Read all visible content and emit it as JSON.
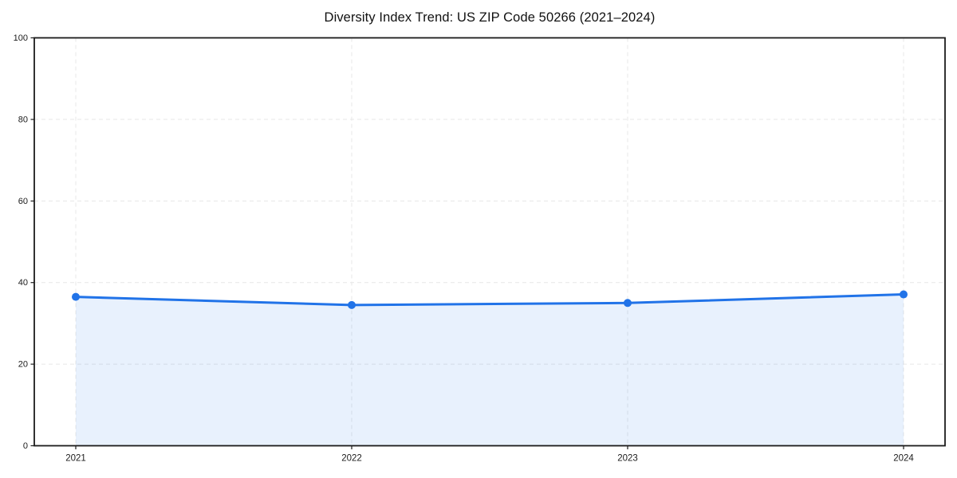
{
  "chart_data": {
    "type": "area",
    "title": "Diversity Index Trend: US ZIP Code 50266 (2021–2024)",
    "categories": [
      "2021",
      "2022",
      "2023",
      "2024"
    ],
    "series": [
      {
        "name": "Diversity Index",
        "values": [
          36.5,
          34.5,
          35.0,
          37.1
        ]
      }
    ],
    "xlabel": "",
    "ylabel": "",
    "ylim": [
      0,
      100
    ],
    "yticks": [
      0,
      20,
      40,
      60,
      80,
      100
    ],
    "grid": true,
    "grid_style": "dashed",
    "legend": "none",
    "line_color": "#2173e8",
    "fill_color": "rgba(33,115,232,0.10)",
    "marker_color": "#2173e8",
    "axis_color": "#1b1b1b",
    "background_color": "#ffffff"
  }
}
